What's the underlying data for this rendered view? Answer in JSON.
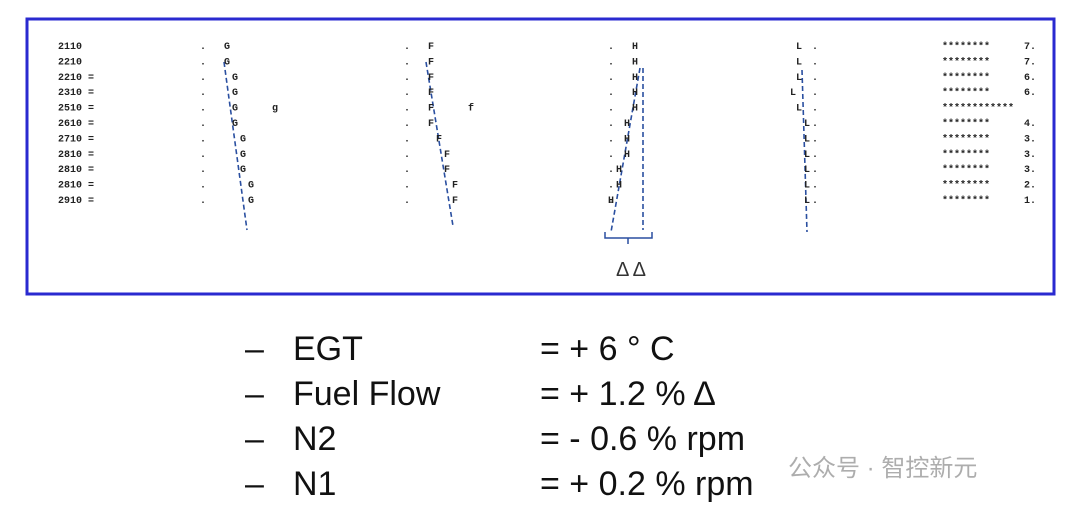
{
  "plot": {
    "dot": ".",
    "rows": [
      {
        "label": "2110",
        "cols": [
          "G",
          "F",
          "H",
          "L"
        ],
        "bar": "********",
        "num": "7."
      },
      {
        "label": "2210",
        "cols": [
          "G",
          "F",
          "H",
          "L"
        ],
        "bar": "********",
        "num": "7."
      },
      {
        "label": "2210 =",
        "cols": [
          "G",
          "F",
          "H",
          "L"
        ],
        "bar": "********",
        "num": "6."
      },
      {
        "label": "2310 =",
        "cols": [
          "G",
          "F",
          "H",
          "L"
        ],
        "bar": "********",
        "num": "6."
      },
      {
        "label": "2510 =",
        "cols": [
          "G",
          "F",
          "H",
          "L"
        ],
        "extra": [
          "g",
          "f"
        ],
        "bar": "************"
      },
      {
        "label": "2610 =",
        "cols": [
          "G",
          "F",
          "H",
          "L"
        ],
        "bar": "********",
        "num": "4."
      },
      {
        "label": "2710 =",
        "cols": [
          "G",
          "F",
          "H",
          "L"
        ],
        "bar": "********",
        "num": "3."
      },
      {
        "label": "2810 =",
        "cols": [
          "G",
          "F",
          "H",
          "L"
        ],
        "bar": "********",
        "num": "3."
      },
      {
        "label": "2810 =",
        "cols": [
          "G",
          "F",
          "H",
          "L"
        ],
        "bar": "********",
        "num": "3."
      },
      {
        "label": "2810 =",
        "cols": [
          "G",
          "F",
          "H",
          "L"
        ],
        "bar": "********",
        "num": "2."
      },
      {
        "label": "2910 =",
        "cols": [
          "G",
          "F",
          "H",
          "L"
        ],
        "bar": "********",
        "num": "1."
      }
    ],
    "delta_label": "Δ Δ"
  },
  "list": [
    {
      "dash": "–",
      "name": "EGT",
      "value": "= + 6 ° C"
    },
    {
      "dash": "–",
      "name": "Fuel Flow",
      "value": "= + 1.2 % Δ"
    },
    {
      "dash": "–",
      "name": "N2",
      "value": "=  - 0.6 % rpm"
    },
    {
      "dash": "–",
      "name": "N1",
      "value": "= + 0.2 % rpm"
    }
  ],
  "watermark": "公众号 · 智控新元"
}
